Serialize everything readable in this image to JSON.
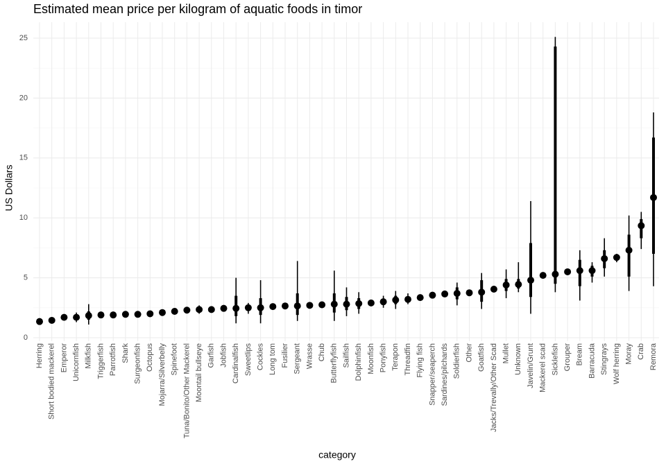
{
  "chart_data": {
    "type": "pointrange",
    "title": "Estimated mean price per kilogram of aquatic foods in timor",
    "x_label": "category",
    "y_label": "US Dollars",
    "categories": [
      "Herring",
      "Short bodied mackerel",
      "Emperor",
      "Unicornfish",
      "Milkfish",
      "Triggerfish",
      "Parrotfish",
      "Shark",
      "Surgeonfish",
      "Octopus",
      "Mojarra/Silverbelly",
      "Spinefoot",
      "Tuna/Bonito/Other Mackerel",
      "Moontail bullseye",
      "Garfish",
      "Jobfish",
      "Cardinalfish",
      "Sweetlips",
      "Cockles",
      "Long tom",
      "Fusilier",
      "Sergeant",
      "Wrasse",
      "Chub",
      "Butterflyfish",
      "Sailfish",
      "Dolphinfish",
      "Moonfish",
      "Ponyfish",
      "Terapon",
      "Threadfin",
      "Flying fish",
      "Snapper/seaperch",
      "Sardines/pilchards",
      "Soldierfish",
      "Other",
      "Goatfish",
      "Jacks/Trevally/Other Scad",
      "Mullet",
      "Unknown",
      "Javelin/Grunt",
      "Mackerel scad",
      "Sicklefish",
      "Grouper",
      "Bream",
      "Barracuda",
      "Stingrays",
      "Wolf herring",
      "Moray",
      "Crab",
      "Remora"
    ],
    "values": [
      1.35,
      1.45,
      1.7,
      1.7,
      1.85,
      1.9,
      1.9,
      1.95,
      1.95,
      2.0,
      2.1,
      2.2,
      2.3,
      2.35,
      2.35,
      2.45,
      2.45,
      2.5,
      2.5,
      2.6,
      2.65,
      2.65,
      2.7,
      2.75,
      2.8,
      2.8,
      2.85,
      2.9,
      3.0,
      3.15,
      3.2,
      3.35,
      3.55,
      3.65,
      3.7,
      3.75,
      3.8,
      4.05,
      4.4,
      4.45,
      4.8,
      5.2,
      5.3,
      5.5,
      5.6,
      5.6,
      6.6,
      6.7,
      7.3,
      9.35,
      11.7
    ],
    "outer_low": [
      null,
      null,
      null,
      1.3,
      1.1,
      null,
      null,
      null,
      null,
      null,
      null,
      null,
      null,
      2.0,
      null,
      null,
      1.2,
      2.0,
      1.2,
      null,
      null,
      1.4,
      null,
      null,
      1.4,
      1.8,
      2.0,
      null,
      2.5,
      2.4,
      2.8,
      null,
      null,
      null,
      2.7,
      null,
      2.4,
      null,
      3.3,
      3.8,
      2.0,
      null,
      3.8,
      null,
      3.1,
      4.6,
      5.1,
      6.3,
      3.9,
      7.4,
      4.3
    ],
    "outer_high": [
      null,
      null,
      null,
      2.1,
      2.8,
      null,
      null,
      null,
      null,
      null,
      null,
      null,
      null,
      2.7,
      null,
      null,
      5.0,
      2.9,
      4.8,
      null,
      null,
      6.4,
      null,
      null,
      5.6,
      4.2,
      3.8,
      null,
      3.5,
      3.9,
      3.7,
      null,
      null,
      null,
      4.6,
      null,
      5.4,
      null,
      5.7,
      6.3,
      11.4,
      null,
      25.1,
      null,
      7.3,
      6.3,
      8.3,
      7.0,
      10.2,
      10.5,
      18.8
    ],
    "inner_low": [
      null,
      null,
      null,
      null,
      1.5,
      null,
      null,
      null,
      null,
      null,
      null,
      null,
      null,
      null,
      null,
      null,
      1.8,
      null,
      1.9,
      null,
      null,
      1.9,
      null,
      null,
      2.1,
      2.3,
      2.4,
      null,
      null,
      2.8,
      null,
      null,
      null,
      null,
      3.2,
      null,
      3.0,
      null,
      3.9,
      4.1,
      3.4,
      null,
      4.5,
      null,
      4.3,
      5.1,
      5.8,
      null,
      5.1,
      8.3,
      7.0
    ],
    "inner_high": [
      null,
      null,
      null,
      null,
      2.2,
      null,
      null,
      null,
      null,
      null,
      null,
      null,
      null,
      null,
      null,
      null,
      3.5,
      null,
      3.3,
      null,
      null,
      3.7,
      null,
      null,
      3.7,
      3.4,
      3.3,
      null,
      null,
      3.5,
      null,
      null,
      null,
      null,
      4.2,
      null,
      4.8,
      null,
      4.9,
      4.9,
      7.9,
      null,
      24.3,
      null,
      6.5,
      6.0,
      7.3,
      null,
      8.6,
      9.9,
      16.7
    ],
    "color": "#000000",
    "ylim": [
      0,
      25
    ],
    "yticks": [
      0,
      5,
      10,
      15,
      20,
      25
    ],
    "grid": true
  }
}
